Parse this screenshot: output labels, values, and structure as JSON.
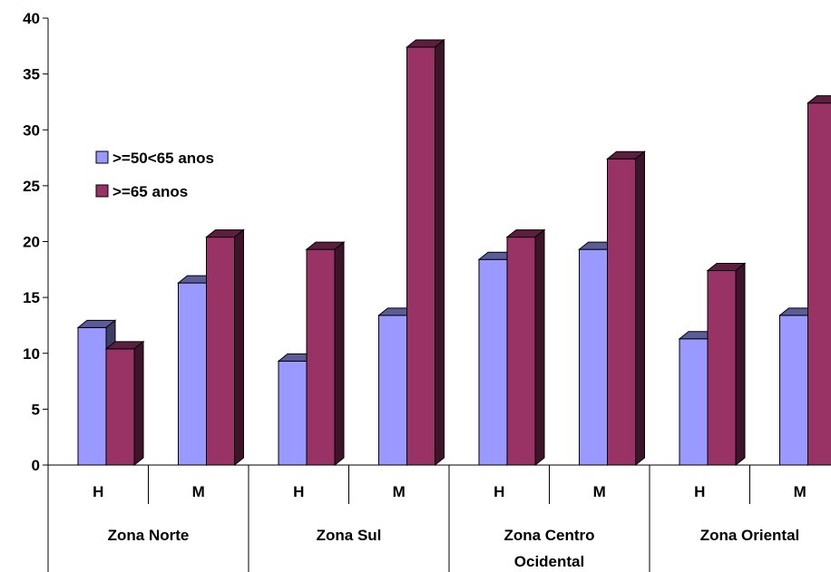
{
  "chart_data": {
    "type": "bar",
    "categories": [
      {
        "sub": "H",
        "group": "Zona Norte"
      },
      {
        "sub": "M",
        "group": "Zona Norte"
      },
      {
        "sub": "H",
        "group": "Zona Sul"
      },
      {
        "sub": "M",
        "group": "Zona Sul"
      },
      {
        "sub": "H",
        "group": "Zona Centro Ocidental"
      },
      {
        "sub": "M",
        "group": "Zona Centro Ocidental"
      },
      {
        "sub": "H",
        "group": "Zona Oriental"
      },
      {
        "sub": "M",
        "group": "Zona Oriental"
      }
    ],
    "groups": [
      {
        "name": "Zona Norte",
        "lines": [
          "Zona Norte"
        ]
      },
      {
        "name": "Zona Sul",
        "lines": [
          "Zona Sul"
        ]
      },
      {
        "name": "Zona Centro Ocidental",
        "lines": [
          "Zona Centro",
          "Ocidental"
        ]
      },
      {
        "name": "Zona Oriental",
        "lines": [
          "Zona Oriental"
        ]
      }
    ],
    "series": [
      {
        "name": ">=50<65 anos",
        "color": "#9999ff",
        "values": [
          12.3,
          16.3,
          9.3,
          13.4,
          18.4,
          19.3,
          11.3,
          13.4
        ]
      },
      {
        "name": ">=65 anos",
        "color": "#993366",
        "values": [
          10.4,
          20.4,
          19.3,
          37.4,
          20.4,
          27.4,
          17.4,
          32.4
        ]
      }
    ],
    "ylim": [
      0,
      40
    ],
    "yticks": [
      0,
      5,
      10,
      15,
      20,
      25,
      30,
      35,
      40
    ],
    "three_d": true,
    "grid": false,
    "legend_position": "top-left"
  }
}
